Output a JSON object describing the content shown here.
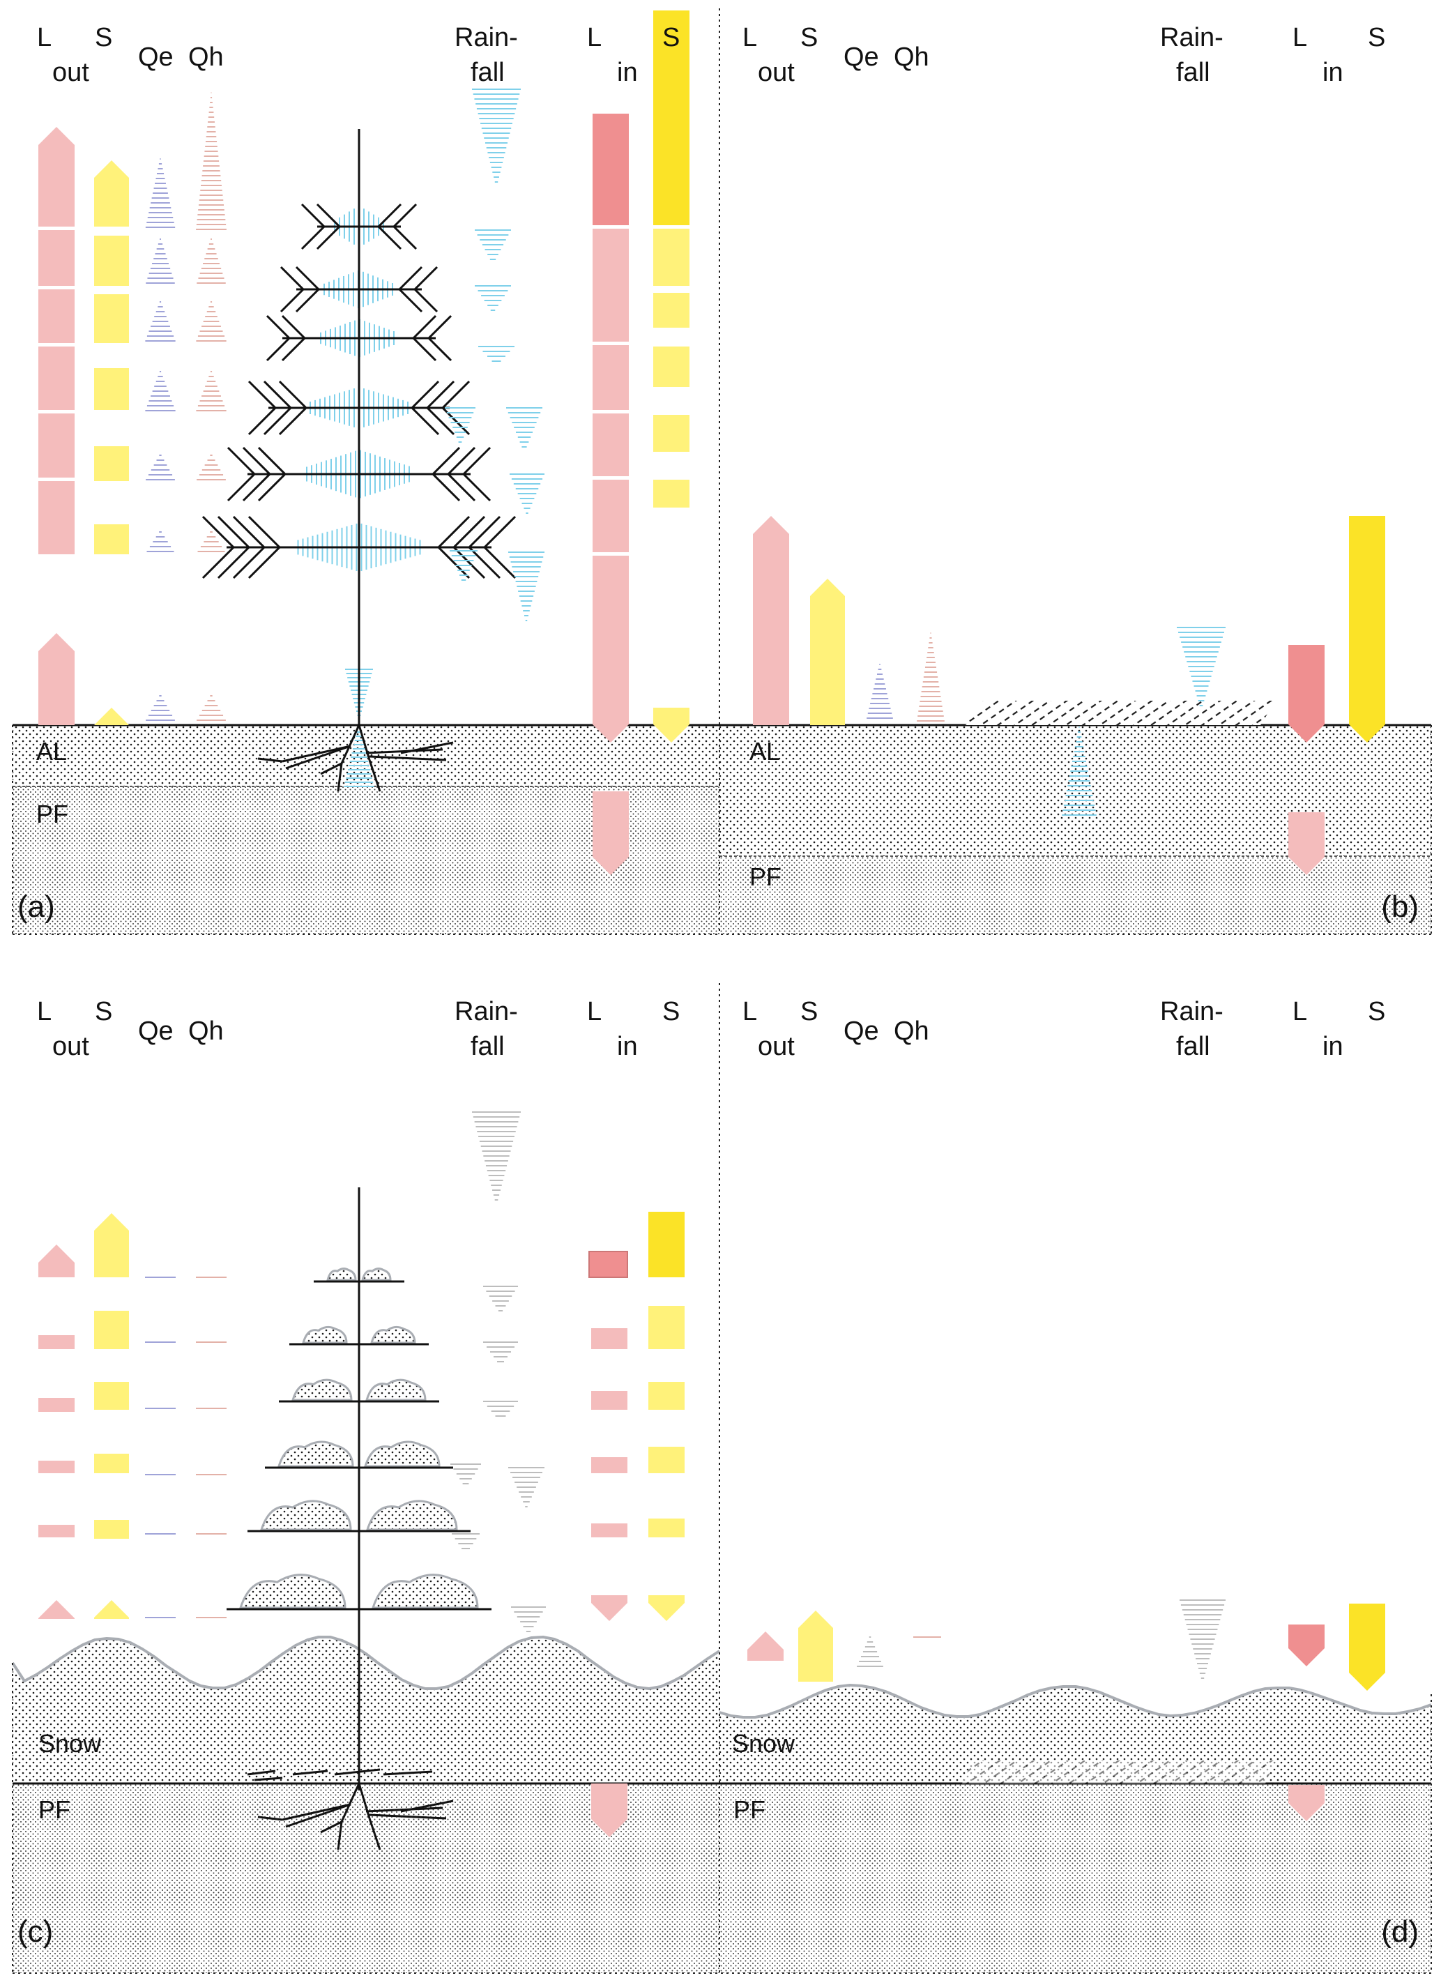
{
  "colors": {
    "longwave": "#f4bcbc",
    "longwave_strong": "#ef8f90",
    "shortwave": "#fff27a",
    "shortwave_strong": "#fbe327",
    "rain": "#7fd0ea",
    "rain_winter": "#bdbdbd",
    "qe": "#9fa3d8",
    "qh": "#e3b1a8",
    "snow_outline": "#a9adb3",
    "ink": "#111111"
  },
  "headers": {
    "L": "L",
    "S": "S",
    "out": "out",
    "in": "in",
    "Qe": "Qe",
    "Qh": "Qh",
    "rain_1": "Rain-",
    "rain_2": "fall"
  },
  "panels": [
    {
      "id": "a",
      "label": "(a)",
      "season": "summer",
      "vegetation": "tree",
      "layers": [
        "AL",
        "PF"
      ],
      "flux_levels": {
        "L_out": "strong",
        "S_out": "strong",
        "Qe": "moderate",
        "Qh": "moderate",
        "rainfall": "intercepted",
        "L_in": "strong",
        "S_in": "strong"
      }
    },
    {
      "id": "b",
      "label": "(b)",
      "season": "summer",
      "vegetation": "open",
      "layers": [
        "AL",
        "PF"
      ],
      "flux_levels": {
        "L_out": "strong",
        "S_out": "strong",
        "Qe": "weak",
        "Qh": "weak",
        "rainfall": "direct",
        "L_in": "strong",
        "S_in": "strong"
      }
    },
    {
      "id": "c",
      "label": "(c)",
      "season": "winter",
      "vegetation": "tree",
      "layers": [
        "Snow",
        "PF"
      ],
      "flux_levels": {
        "L_out": "weak",
        "S_out": "moderate",
        "Qe": "minimal",
        "Qh": "minimal",
        "rainfall": "intercepted",
        "L_in": "weak",
        "S_in": "moderate"
      }
    },
    {
      "id": "d",
      "label": "(d)",
      "season": "winter",
      "vegetation": "open",
      "layers": [
        "Snow",
        "PF"
      ],
      "flux_levels": {
        "L_out": "weak",
        "S_out": "moderate",
        "Qe": "minimal",
        "Qh": "minimal",
        "rainfall": "direct",
        "L_in": "weak",
        "S_in": "moderate"
      }
    }
  ]
}
